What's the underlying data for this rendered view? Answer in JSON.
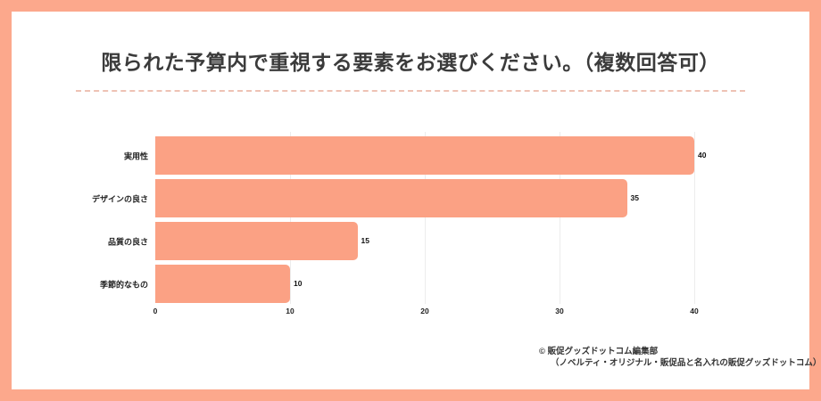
{
  "title": "限られた予算内で重視する要素をお選びください。（複数回答可）",
  "colors": {
    "frame": "#fca88c",
    "card": "#ffffff",
    "bar": "#fba184",
    "divider": "#eec2b4",
    "grid": "#ececec",
    "title_text": "#3b3b3b",
    "label_text": "#222222"
  },
  "chart_data": {
    "type": "bar",
    "orientation": "horizontal",
    "title": "限られた予算内で重視する要素をお選びください。（複数回答可）",
    "categories": [
      "実用性",
      "デザインの良さ",
      "品質の良さ",
      "季節的なもの"
    ],
    "values": [
      40,
      35,
      15,
      10
    ],
    "value_labels": [
      "40",
      "35",
      "15",
      "10"
    ],
    "xlabel": "",
    "ylabel": "",
    "xlim": [
      0,
      40
    ],
    "xticks": [
      0,
      10,
      20,
      30,
      40
    ],
    "grid": true,
    "legend": false
  },
  "footer": {
    "line1": "© 販促グッズドットコム編集部",
    "line2": "（ノベルティ・オリジナル・販促品と名入れの販促グッズドットコム）"
  }
}
